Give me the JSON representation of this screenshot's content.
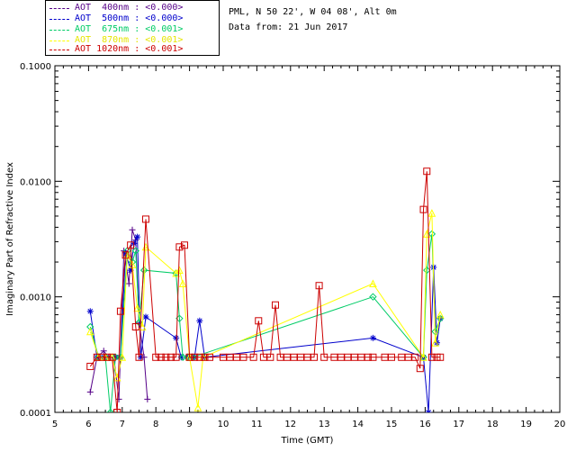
{
  "header": {
    "site_line": "PML, N 50 22', W 04 08', Alt 0m",
    "date_line": "Data from: 21 Jun 2017"
  },
  "chart_data": {
    "type": "line",
    "xlabel": "Time (GMT)",
    "ylabel": "Imaginary Part of Refractive Index",
    "xlim": [
      5,
      20
    ],
    "ylim": [
      0.0001,
      0.1
    ],
    "yscale": "log",
    "x_ticks": [
      "5",
      "6",
      "7",
      "8",
      "9",
      "10",
      "11",
      "12",
      "13",
      "14",
      "15",
      "16",
      "17",
      "18",
      "19",
      "20"
    ],
    "y_ticks": [
      {
        "value": 0.0001,
        "label": "0.0001"
      },
      {
        "value": 0.001,
        "label": "0.0010"
      },
      {
        "value": 0.01,
        "label": "0.0100"
      },
      {
        "value": 0.1,
        "label": "0.1000"
      }
    ],
    "grid": false,
    "legend_position": "top-left",
    "series": [
      {
        "name": "AOT  400nm : <0.000>",
        "color": "#550088",
        "marker": "plus",
        "x": [
          6.05,
          6.25,
          6.45,
          6.6,
          6.75,
          6.9,
          7.05,
          7.2,
          7.3,
          7.4,
          7.5,
          7.65,
          7.75
        ],
        "y": [
          0.00015,
          0.0003,
          0.00034,
          0.0003,
          0.0003,
          0.00013,
          0.0025,
          0.0013,
          0.0038,
          0.0031,
          0.0006,
          0.0003,
          0.00013
        ]
      },
      {
        "name": "AOT  500nm : <0.000>",
        "color": "#0000cc",
        "marker": "asterisk",
        "x": [
          6.05,
          6.25,
          6.45,
          6.6,
          6.8,
          6.95,
          7.1,
          7.25,
          7.35,
          7.45,
          7.55,
          7.7,
          8.6,
          8.75,
          8.95,
          9.15,
          9.3,
          9.45,
          14.45,
          15.95,
          16.1,
          16.25,
          16.35,
          16.45
        ],
        "y": [
          0.00075,
          0.0003,
          0.0003,
          0.0003,
          0.0003,
          0.0003,
          0.0024,
          0.0017,
          0.0029,
          0.0033,
          0.0003,
          0.00067,
          0.00044,
          0.0003,
          0.0003,
          0.0003,
          0.00062,
          0.0003,
          0.00044,
          0.0003,
          0.0001,
          0.0018,
          0.0004,
          0.00065
        ]
      },
      {
        "name": "AOT  675nm : <0.001>",
        "color": "#00cc66",
        "marker": "diamond",
        "x": [
          6.05,
          6.3,
          6.5,
          6.65,
          6.8,
          6.95,
          7.15,
          7.3,
          7.4,
          7.5,
          7.65,
          8.6,
          8.7,
          8.8,
          8.95,
          9.1,
          14.45,
          15.95,
          16.05,
          16.2,
          16.3,
          16.45
        ],
        "y": [
          0.00055,
          0.0003,
          0.0003,
          0.0001,
          0.0003,
          0.0003,
          0.0025,
          0.002,
          0.0025,
          0.0006,
          0.0017,
          0.0016,
          0.00065,
          0.0003,
          0.0003,
          0.0003,
          0.001,
          0.0003,
          0.0017,
          0.0035,
          0.0005,
          0.00065
        ]
      },
      {
        "name": "AOT  870nm : <0.001>",
        "color": "#ffff00",
        "marker": "triangle",
        "x": [
          6.05,
          6.3,
          6.5,
          6.7,
          6.85,
          7.0,
          7.15,
          7.3,
          7.45,
          7.6,
          7.7,
          8.6,
          8.7,
          8.8,
          9.0,
          9.25,
          9.4,
          14.45,
          15.95,
          16.05,
          16.2,
          16.3,
          16.45
        ],
        "y": [
          0.0005,
          0.0003,
          0.0003,
          0.0003,
          0.0002,
          0.0003,
          0.0023,
          0.0019,
          0.0008,
          0.00055,
          0.0027,
          0.0016,
          0.0017,
          0.0013,
          0.0003,
          0.00011,
          0.0003,
          0.0013,
          0.0003,
          0.0035,
          0.0053,
          0.0004,
          0.0007
        ]
      },
      {
        "name": "AOT 1020nm : <0.001>",
        "color": "#cc0000",
        "marker": "square",
        "x": [
          6.05,
          6.25,
          6.4,
          6.55,
          6.7,
          6.85,
          6.95,
          7.1,
          7.25,
          7.4,
          7.5,
          7.7,
          8.0,
          8.15,
          8.3,
          8.45,
          8.6,
          8.7,
          8.85,
          9.0,
          9.15,
          9.3,
          9.45,
          9.6,
          10.0,
          10.2,
          10.4,
          10.6,
          10.9,
          11.05,
          11.2,
          11.4,
          11.55,
          11.7,
          11.9,
          12.1,
          12.3,
          12.5,
          12.7,
          12.85,
          13.0,
          13.3,
          13.5,
          13.7,
          13.9,
          14.1,
          14.3,
          14.45,
          14.8,
          15.0,
          15.3,
          15.5,
          15.7,
          15.85,
          15.95,
          16.05,
          16.2,
          16.35,
          16.45
        ],
        "y": [
          0.00025,
          0.0003,
          0.0003,
          0.0003,
          0.0003,
          0.0001,
          0.00075,
          0.0023,
          0.0028,
          0.00055,
          0.0003,
          0.0047,
          0.0003,
          0.0003,
          0.0003,
          0.0003,
          0.0003,
          0.0027,
          0.0028,
          0.0003,
          0.0003,
          0.0003,
          0.0003,
          0.0003,
          0.0003,
          0.0003,
          0.0003,
          0.0003,
          0.0003,
          0.00062,
          0.0003,
          0.0003,
          0.00085,
          0.0003,
          0.0003,
          0.0003,
          0.0003,
          0.0003,
          0.0003,
          0.00125,
          0.0003,
          0.0003,
          0.0003,
          0.0003,
          0.0003,
          0.0003,
          0.0003,
          0.0003,
          0.0003,
          0.0003,
          0.0003,
          0.0003,
          0.0003,
          0.00024,
          0.0057,
          0.0122,
          0.0003,
          0.0003,
          0.0003
        ]
      }
    ]
  }
}
